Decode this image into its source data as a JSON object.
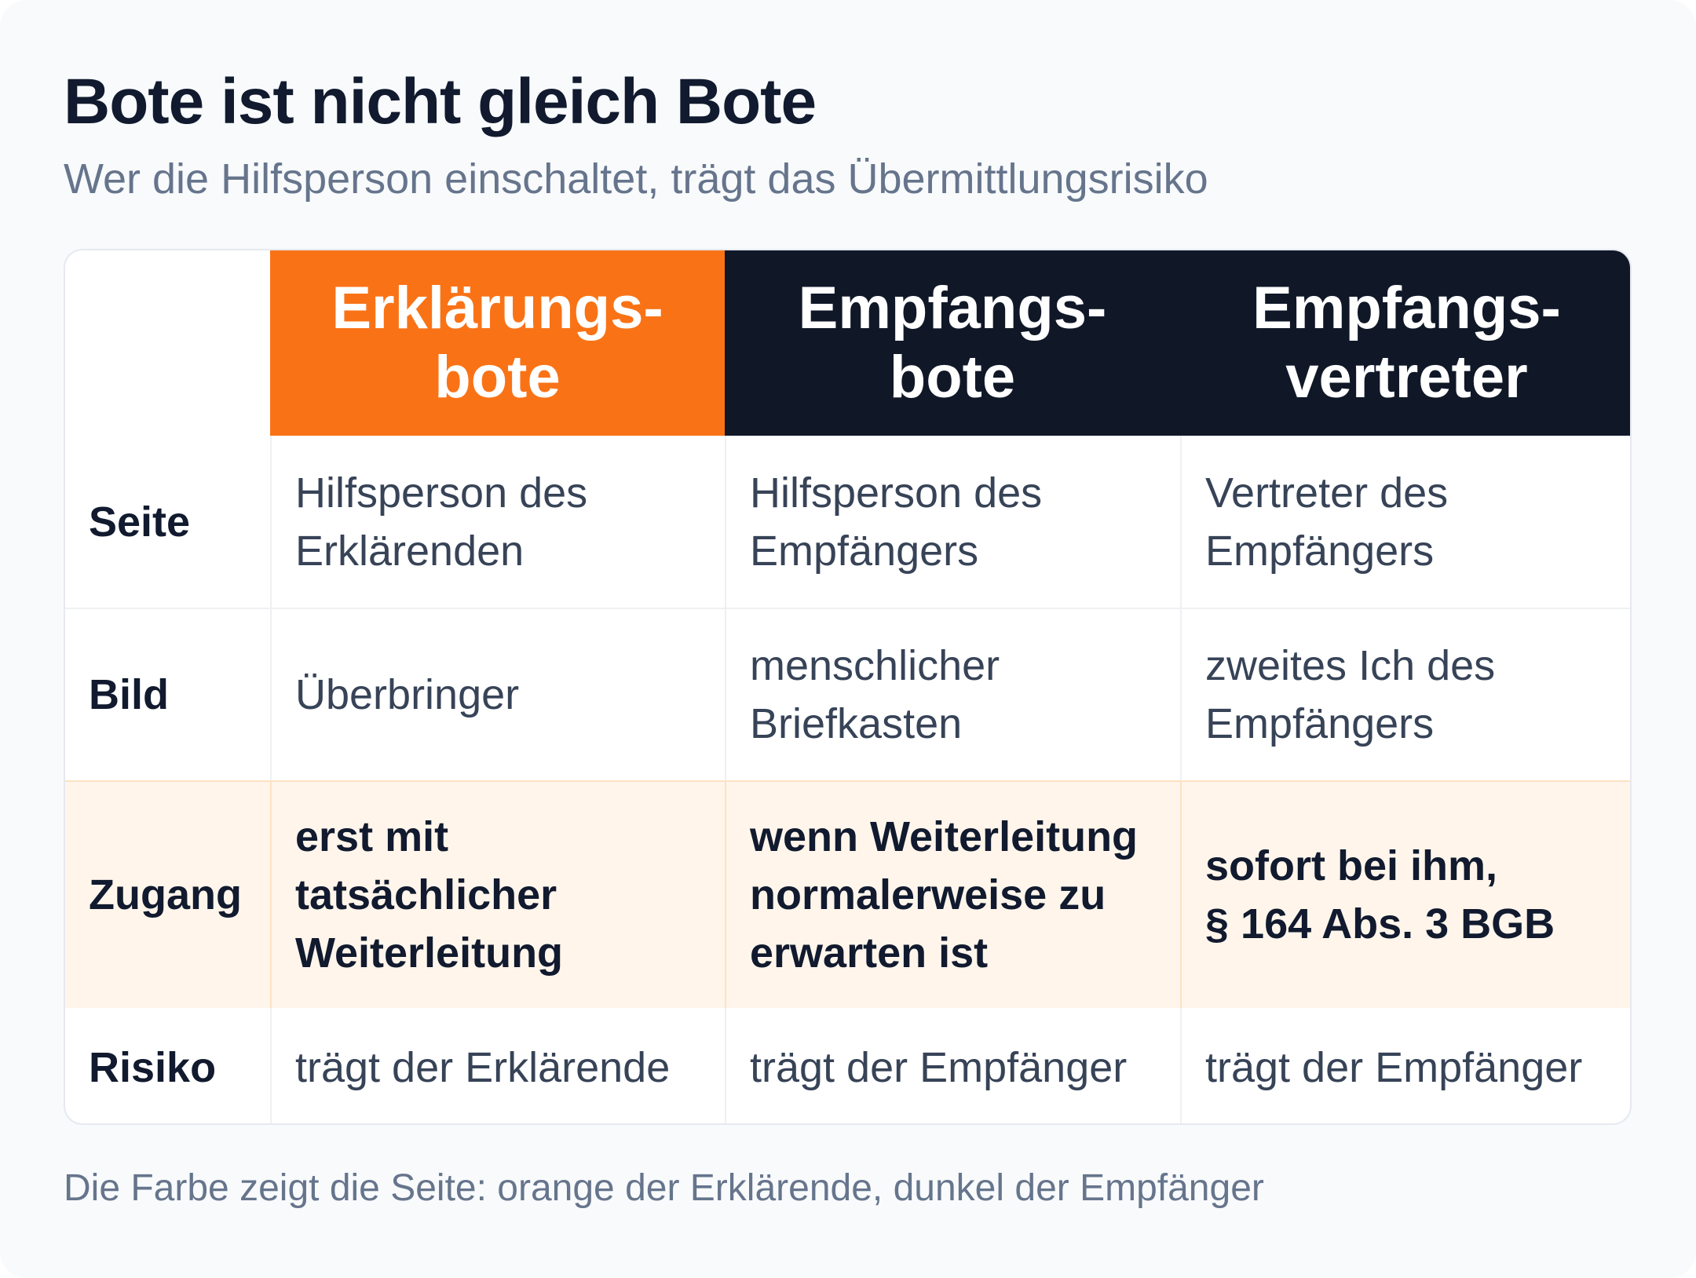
{
  "title": "Bote ist nicht gleich Bote",
  "subtitle": "Wer die Hilfsperson einschaltet, trägt das Übermittlungsrisiko",
  "columns": [
    {
      "line1": "Erklärungs-",
      "line2": "bote",
      "color": "#f97316"
    },
    {
      "line1": "Empfangs-",
      "line2": "bote",
      "color": "#101828"
    },
    {
      "line1": "Empfangs-",
      "line2": "vertreter",
      "color": "#101828"
    }
  ],
  "rows": [
    {
      "label": "Seite",
      "cells": [
        [
          "Hilfsperson des",
          "Erklärenden"
        ],
        [
          "Hilfsperson des",
          "Empfängers"
        ],
        [
          "Vertreter des",
          "Empfängers"
        ]
      ]
    },
    {
      "label": "Bild",
      "cells": [
        [
          "Überbringer"
        ],
        [
          "menschlicher",
          "Briefkasten"
        ],
        [
          "zweites Ich des",
          "Empfängers"
        ]
      ]
    },
    {
      "label": "Zugang",
      "highlight_color": "#fff5eb",
      "cells": [
        [
          "erst mit",
          "tatsächlicher",
          "Weiterleitung"
        ],
        [
          "wenn Weiterleitung",
          "normalerweise zu",
          "erwarten ist"
        ],
        [
          "sofort bei ihm,",
          "§ 164 Abs. 3 BGB"
        ]
      ]
    },
    {
      "label": "Risiko",
      "cells": [
        [
          "trägt der Erklärende"
        ],
        [
          "trägt der Empfänger"
        ],
        [
          "trägt der Empfänger"
        ]
      ]
    }
  ],
  "footnote": "Die Farbe zeigt die Seite: orange der Erklärende, dunkel der Empfänger"
}
